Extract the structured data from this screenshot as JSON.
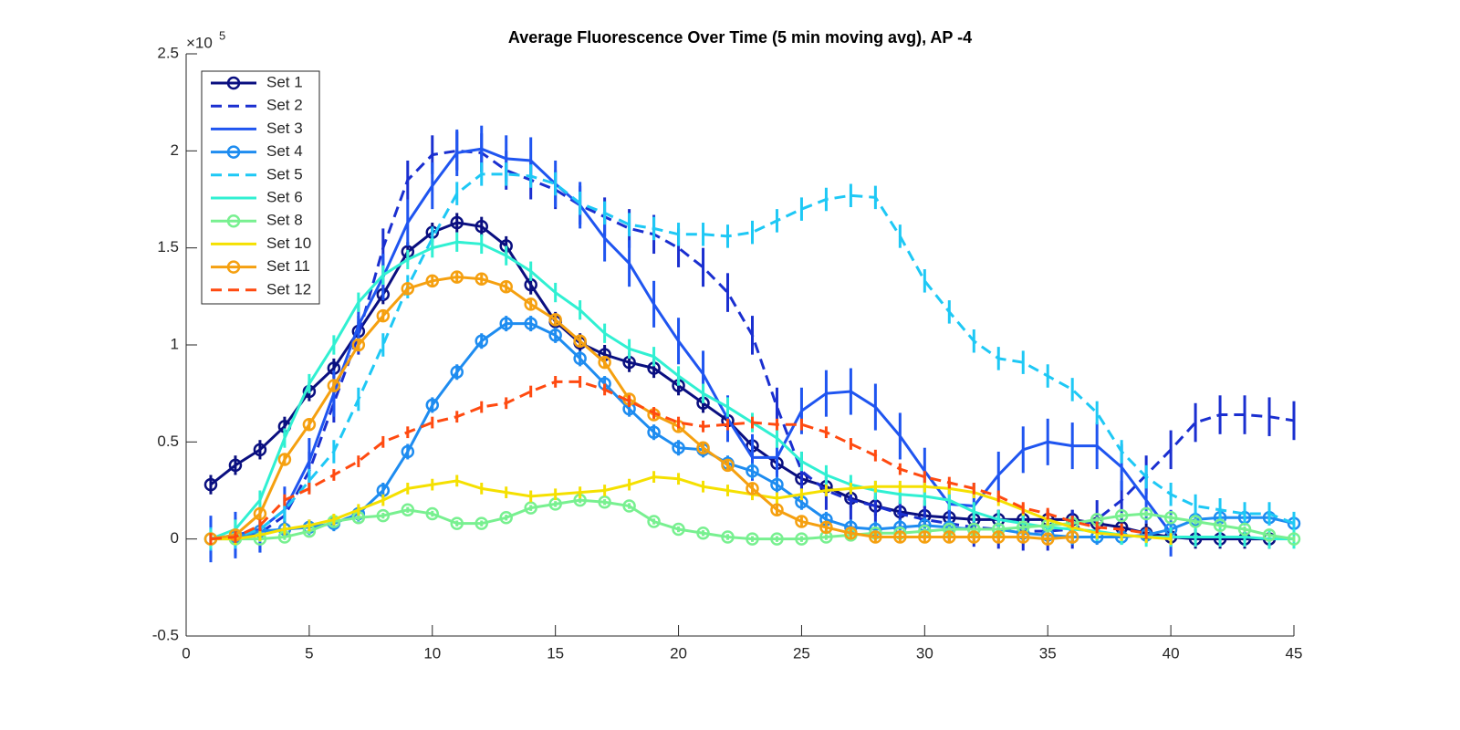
{
  "chart_data": {
    "type": "line",
    "title": "Average Fluorescence Over Time (5 min moving avg), AP -4",
    "y_exponent": {
      "base": "×10",
      "power": "5"
    },
    "x": [
      1,
      2,
      3,
      4,
      5,
      6,
      7,
      8,
      9,
      10,
      11,
      12,
      13,
      14,
      15,
      16,
      17,
      18,
      19,
      20,
      21,
      22,
      23,
      24,
      25,
      26,
      27,
      28,
      29,
      30,
      31,
      32,
      33,
      34,
      35,
      36,
      37,
      38,
      39,
      40,
      41,
      42,
      43,
      44,
      45
    ],
    "xlim": [
      0,
      45
    ],
    "xticks": [
      0,
      5,
      10,
      15,
      20,
      25,
      30,
      35,
      40,
      45
    ],
    "ylim": [
      -0.5,
      2.5
    ],
    "yticks": [
      -0.5,
      0,
      0.5,
      1,
      1.5,
      2,
      2.5
    ],
    "legend": "upper-left",
    "series": [
      {
        "name": "Set 1",
        "color": "#0a0f80",
        "marker": "o",
        "linestyle": "solid",
        "error": 0.05,
        "values": [
          0.28,
          0.38,
          0.46,
          0.58,
          0.76,
          0.88,
          1.07,
          1.26,
          1.48,
          1.58,
          1.63,
          1.61,
          1.51,
          1.31,
          1.12,
          1.01,
          0.95,
          0.91,
          0.88,
          0.79,
          0.7,
          0.61,
          0.48,
          0.39,
          0.31,
          0.27,
          0.21,
          0.17,
          0.14,
          0.12,
          0.11,
          0.1,
          0.1,
          0.1,
          0.1,
          0.1,
          0.08,
          0.06,
          0.03,
          0.01,
          0,
          0,
          0,
          0,
          null
        ]
      },
      {
        "name": "Set 2",
        "color": "#1a2fd0",
        "marker": "none",
        "linestyle": "dashed",
        "error": 0.1,
        "values": [
          0,
          0.01,
          0.03,
          0.12,
          0.35,
          0.7,
          1.05,
          1.5,
          1.85,
          1.98,
          2.0,
          1.99,
          1.9,
          1.85,
          1.8,
          1.72,
          1.66,
          1.6,
          1.57,
          1.5,
          1.4,
          1.27,
          1.05,
          0.68,
          0.35,
          0.25,
          0.2,
          0.17,
          0.13,
          0.1,
          0.08,
          0.06,
          0.05,
          0.04,
          0.04,
          0.05,
          0.1,
          0.2,
          0.33,
          0.46,
          0.6,
          0.64,
          0.64,
          0.63,
          0.61
        ]
      },
      {
        "name": "Set 3",
        "color": "#1f55f0",
        "marker": "none",
        "linestyle": "solid",
        "error": 0.12,
        "values": [
          0,
          0.02,
          0.05,
          0.15,
          0.4,
          0.75,
          1.1,
          1.35,
          1.63,
          1.82,
          1.99,
          2.01,
          1.96,
          1.95,
          1.83,
          1.72,
          1.55,
          1.42,
          1.21,
          1.02,
          0.85,
          0.62,
          0.42,
          0.42,
          0.66,
          0.75,
          0.76,
          0.68,
          0.53,
          0.35,
          0.18,
          0.17,
          0.33,
          0.46,
          0.5,
          0.48,
          0.48,
          0.37,
          0.2,
          0.03,
          null,
          null,
          null,
          null,
          null
        ]
      },
      {
        "name": "Set 4",
        "color": "#1e8cf0",
        "marker": "o",
        "linestyle": "solid",
        "error": 0.04,
        "values": [
          0,
          0.01,
          0.04,
          0.05,
          0.06,
          0.08,
          0.13,
          0.25,
          0.45,
          0.69,
          0.86,
          1.02,
          1.11,
          1.11,
          1.05,
          0.93,
          0.8,
          0.67,
          0.55,
          0.47,
          0.46,
          0.39,
          0.35,
          0.28,
          0.19,
          0.1,
          0.06,
          0.05,
          0.06,
          0.07,
          0.06,
          0.05,
          0.05,
          0.03,
          0.02,
          0.01,
          0.01,
          0.01,
          0.02,
          0.05,
          0.1,
          0.11,
          0.11,
          0.11,
          0.08
        ]
      },
      {
        "name": "Set 5",
        "color": "#1ec8f5",
        "marker": "none",
        "linestyle": "dashed",
        "error": 0.06,
        "values": [
          0,
          0.01,
          0.05,
          0.15,
          0.3,
          0.45,
          0.72,
          1.0,
          1.3,
          1.55,
          1.78,
          1.88,
          1.88,
          1.87,
          1.83,
          1.73,
          1.68,
          1.62,
          1.6,
          1.57,
          1.57,
          1.56,
          1.58,
          1.64,
          1.7,
          1.75,
          1.77,
          1.76,
          1.56,
          1.33,
          1.17,
          1.02,
          0.93,
          0.91,
          0.84,
          0.77,
          0.65,
          0.45,
          0.32,
          0.23,
          0.17,
          0.15,
          0.13,
          0.13,
          0.08
        ]
      },
      {
        "name": "Set 6",
        "color": "#30f0d2",
        "marker": "none",
        "linestyle": "solid",
        "error": 0.05,
        "values": [
          0,
          0.05,
          0.2,
          0.52,
          0.8,
          1.0,
          1.22,
          1.36,
          1.44,
          1.5,
          1.53,
          1.52,
          1.46,
          1.38,
          1.27,
          1.18,
          1.06,
          0.98,
          0.94,
          0.84,
          0.75,
          0.68,
          0.6,
          0.52,
          0.4,
          0.33,
          0.28,
          0.25,
          0.23,
          0.22,
          0.2,
          0.14,
          0.1,
          0.08,
          0.06,
          0.05,
          0.04,
          0.02,
          0.01,
          0.01,
          0.01,
          0.01,
          0.01,
          0,
          0
        ]
      },
      {
        "name": "Set 8",
        "color": "#78f090",
        "marker": "o",
        "linestyle": "solid",
        "error": 0.015,
        "values": [
          0,
          0,
          0,
          0.01,
          0.04,
          0.09,
          0.11,
          0.12,
          0.15,
          0.13,
          0.08,
          0.08,
          0.11,
          0.16,
          0.18,
          0.2,
          0.19,
          0.17,
          0.09,
          0.05,
          0.03,
          0.01,
          0,
          0,
          0,
          0.01,
          0.02,
          0.03,
          0.03,
          0.04,
          0.05,
          0.05,
          0.05,
          0.06,
          0.07,
          0.08,
          0.1,
          0.12,
          0.13,
          0.11,
          0.09,
          0.07,
          0.05,
          0.02,
          0
        ]
      },
      {
        "name": "Set 10",
        "color": "#f5e000",
        "marker": "none",
        "linestyle": "solid",
        "error": 0.03,
        "values": [
          0,
          0,
          0.02,
          0.05,
          0.07,
          0.1,
          0.15,
          0.2,
          0.26,
          0.28,
          0.3,
          0.26,
          0.24,
          0.22,
          0.23,
          0.24,
          0.25,
          0.28,
          0.32,
          0.31,
          0.27,
          0.25,
          0.23,
          0.21,
          0.23,
          0.25,
          0.26,
          0.27,
          0.27,
          0.27,
          0.26,
          0.24,
          0.2,
          0.15,
          0.1,
          0.06,
          0.03,
          0.02,
          0.01,
          0,
          null,
          null,
          null,
          null,
          null
        ]
      },
      {
        "name": "Set 11",
        "color": "#f5a010",
        "marker": "o",
        "linestyle": "solid",
        "error": 0.03,
        "values": [
          0,
          0.02,
          0.13,
          0.41,
          0.59,
          0.79,
          1.0,
          1.15,
          1.29,
          1.33,
          1.35,
          1.34,
          1.3,
          1.21,
          1.13,
          1.02,
          0.91,
          0.72,
          0.64,
          0.58,
          0.47,
          0.38,
          0.26,
          0.15,
          0.09,
          0.06,
          0.03,
          0.01,
          0.01,
          0.01,
          0.01,
          0.01,
          0.01,
          0.01,
          0,
          0.01,
          null,
          null,
          null,
          null,
          null,
          null,
          null,
          null,
          null
        ]
      },
      {
        "name": "Set 12",
        "color": "#ff4a10",
        "marker": "none",
        "linestyle": "dashed",
        "error": 0.03,
        "values": [
          0,
          0.01,
          0.07,
          0.2,
          0.26,
          0.33,
          0.4,
          0.5,
          0.55,
          0.6,
          0.63,
          0.68,
          0.7,
          0.76,
          0.81,
          0.81,
          0.77,
          0.71,
          0.65,
          0.6,
          0.58,
          0.59,
          0.6,
          0.59,
          0.59,
          0.55,
          0.49,
          0.43,
          0.36,
          0.32,
          0.29,
          0.26,
          0.22,
          0.16,
          0.13,
          0.09,
          0.06,
          0.05,
          0.03,
          null,
          null,
          null,
          null,
          null,
          null
        ]
      }
    ]
  }
}
